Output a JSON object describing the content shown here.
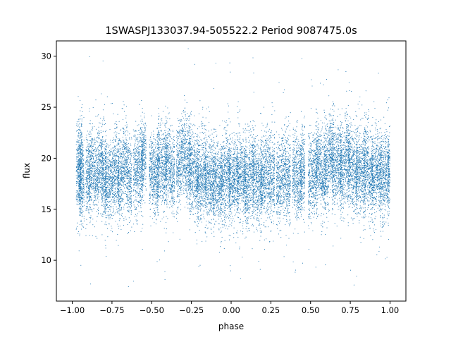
{
  "chart_data": {
    "type": "scatter",
    "title": "1SWASPJ133037.94-505522.2 Period 9087475.0s",
    "xlabel": "phase",
    "ylabel": "flux",
    "xlim": [
      -1.1,
      1.1
    ],
    "ylim": [
      6.0,
      31.5
    ],
    "xticks": [
      -1.0,
      -0.75,
      -0.5,
      -0.25,
      0.0,
      0.25,
      0.5,
      0.75,
      1.0
    ],
    "xtick_labels": [
      "−1.00",
      "−0.75",
      "−0.50",
      "−0.25",
      "0.00",
      "0.25",
      "0.50",
      "0.75",
      "1.00"
    ],
    "yticks": [
      10,
      15,
      20,
      25,
      30
    ],
    "ytick_labels": [
      "10",
      "15",
      "20",
      "25",
      "30"
    ],
    "grid": false,
    "legend": "none",
    "marker_color": "#1f77b4",
    "series": [
      {
        "description_of_distribution": "phase-folded light curve; dense vertical clumps spanning phase -1 to 1, mirrored",
        "x": [
          -0.96,
          -0.95,
          -0.94,
          -0.9,
          -0.88,
          -0.85,
          -0.82,
          -0.8,
          -0.78,
          -0.75,
          -0.72,
          -0.7,
          -0.67,
          -0.64,
          -0.6,
          -0.57,
          -0.55,
          -0.5,
          -0.47,
          -0.45,
          -0.42,
          -0.4,
          -0.37,
          -0.33,
          -0.3,
          -0.27,
          -0.25,
          -0.22,
          -0.2,
          -0.17,
          -0.15,
          -0.12,
          -0.1,
          -0.07,
          -0.05,
          -0.02,
          0.0,
          0.03,
          0.05,
          0.08,
          0.1,
          0.13,
          0.15,
          0.18,
          0.2,
          0.23,
          0.26,
          0.3,
          0.33,
          0.36,
          0.4,
          0.43,
          0.45,
          0.5,
          0.53,
          0.55,
          0.58,
          0.6,
          0.63,
          0.65,
          0.68,
          0.7,
          0.73,
          0.75,
          0.78,
          0.8,
          0.83,
          0.85,
          0.88,
          0.9,
          0.93,
          0.95,
          0.98,
          1.0
        ],
        "y": [
          18.5,
          20.0,
          17.5,
          18.0,
          19.0,
          18.5,
          19.5,
          18.0,
          17.5,
          18.5,
          19.0,
          18.0,
          19.5,
          18.0,
          18.5,
          19.0,
          20.5,
          18.5,
          18.0,
          19.5,
          19.0,
          19.5,
          18.5,
          19.0,
          20.5,
          19.5,
          19.0,
          18.5,
          18.0,
          18.5,
          18.0,
          17.5,
          18.0,
          17.5,
          18.0,
          18.5,
          17.5,
          18.0,
          18.5,
          18.0,
          17.5,
          18.5,
          18.0,
          17.5,
          18.0,
          18.5,
          18.0,
          17.5,
          18.5,
          18.0,
          18.5,
          18.0,
          19.0,
          18.0,
          18.5,
          19.5,
          18.0,
          19.0,
          20.5,
          19.0,
          19.5,
          19.0,
          20.0,
          19.5,
          18.5,
          19.0,
          18.5,
          19.5,
          18.0,
          18.5,
          19.0,
          18.0,
          18.5,
          19.0
        ]
      }
    ]
  }
}
